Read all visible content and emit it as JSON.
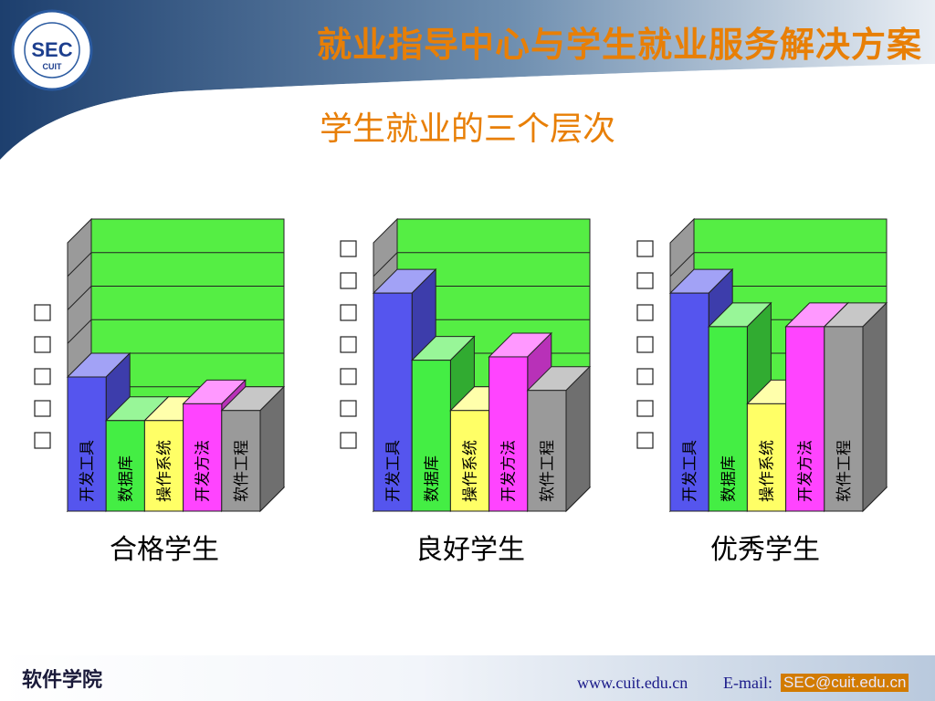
{
  "header": {
    "title": "就业指导中心与学生就业服务解决方案",
    "logo_text": "SEC",
    "logo_sub": "CUIT"
  },
  "subtitle": "学生就业的三个层次",
  "colors": {
    "title": "#e87f06",
    "plot_background": "#55ee44",
    "wall": "#9a9a9a"
  },
  "chart_data": [
    {
      "type": "bar",
      "title": "",
      "group_label": "合格学生",
      "categories": [
        "开发工具",
        "数据库",
        "操作系统",
        "开发方法",
        "软件工程"
      ],
      "values": [
        4,
        2.7,
        2.7,
        3.2,
        3.0
      ],
      "ylim": [
        0,
        8
      ],
      "y_ticks_count": 5,
      "grid": true,
      "series_colors": [
        "#5555ee",
        "#44ee44",
        "#ffff66",
        "#ff44ff",
        "#9a9a9a"
      ]
    },
    {
      "type": "bar",
      "title": "",
      "group_label": "良好学生",
      "categories": [
        "开发工具",
        "数据库",
        "操作系统",
        "开发方法",
        "软件工程"
      ],
      "values": [
        6.5,
        4.5,
        3.0,
        4.6,
        3.6
      ],
      "ylim": [
        0,
        8
      ],
      "y_ticks_count": 7,
      "grid": true,
      "series_colors": [
        "#5555ee",
        "#44ee44",
        "#ffff66",
        "#ff44ff",
        "#9a9a9a"
      ]
    },
    {
      "type": "bar",
      "title": "",
      "group_label": "优秀学生",
      "categories": [
        "开发工具",
        "数据库",
        "操作系统",
        "开发方法",
        "软件工程"
      ],
      "values": [
        6.5,
        5.5,
        3.2,
        5.5,
        5.5
      ],
      "ylim": [
        0,
        8
      ],
      "y_ticks_count": 7,
      "grid": true,
      "series_colors": [
        "#5555ee",
        "#44ee44",
        "#ffff66",
        "#ff44ff",
        "#9a9a9a"
      ]
    }
  ],
  "footer": {
    "school": "软件学院",
    "website": "www.cuit.edu.cn",
    "email_label": "E-mail:",
    "email_value": "SEC@cuit.edu.cn"
  }
}
